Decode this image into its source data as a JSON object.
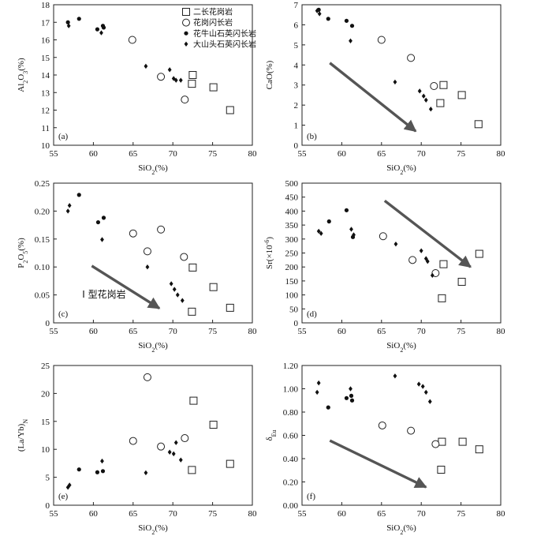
{
  "chart_data": [
    {
      "panel": "(a)",
      "type": "scatter",
      "xlabel": "SiO2(%)",
      "ylabel": "Al2O3(%)",
      "xlim": [
        55,
        80
      ],
      "ylim": [
        10,
        18
      ],
      "xticks": [
        "55",
        "60",
        "65",
        "70",
        "75",
        "80"
      ],
      "yticks": [
        "10",
        "11",
        "12",
        "13",
        "14",
        "15",
        "16",
        "17",
        "18"
      ],
      "legend": {
        "placement": "top-right"
      },
      "series": [
        {
          "name": "二长花岗岩",
          "marker": "open-square",
          "points": [
            [
              72.5,
              14.0
            ],
            [
              72.4,
              13.5
            ],
            [
              75.1,
              13.3
            ],
            [
              77.2,
              12.0
            ]
          ]
        },
        {
          "name": "花岗闪长岩",
          "marker": "open-circle",
          "points": [
            [
              64.9,
              16.0
            ],
            [
              68.5,
              13.9
            ],
            [
              71.5,
              12.6
            ]
          ]
        },
        {
          "name": "花牛山石英闪长岩",
          "marker": "filled-circle",
          "points": [
            [
              56.8,
              17.0
            ],
            [
              58.2,
              17.2
            ],
            [
              60.5,
              16.6
            ],
            [
              61.2,
              16.8
            ],
            [
              61.3,
              16.7
            ]
          ]
        },
        {
          "name": "大山头石英闪长岩",
          "marker": "filled-diamond",
          "points": [
            [
              56.9,
              16.8
            ],
            [
              61.0,
              16.4
            ],
            [
              66.6,
              14.5
            ],
            [
              69.6,
              14.3
            ],
            [
              70.1,
              13.8
            ],
            [
              70.4,
              13.7
            ],
            [
              71.0,
              13.7
            ]
          ]
        }
      ]
    },
    {
      "panel": "(b)",
      "type": "scatter",
      "xlabel": "SiO2(%)",
      "ylabel": "CaO(%)",
      "xlim": [
        55,
        80
      ],
      "ylim": [
        0,
        7
      ],
      "xticks": [
        "55",
        "60",
        "65",
        "70",
        "75",
        "80"
      ],
      "yticks": [
        "0",
        "1",
        "2",
        "3",
        "4",
        "5",
        "6",
        "7"
      ],
      "trend_arrow": {
        "from": [
          58.5,
          4.1
        ],
        "to": [
          69.3,
          0.7
        ]
      },
      "series": [
        {
          "name": "二长花岗岩",
          "marker": "open-square",
          "points": [
            [
              72.8,
              3.0
            ],
            [
              72.4,
              2.1
            ],
            [
              75.1,
              2.5
            ],
            [
              77.2,
              1.05
            ]
          ]
        },
        {
          "name": "花岗闪长岩",
          "marker": "open-circle",
          "points": [
            [
              65.0,
              5.25
            ],
            [
              68.7,
              4.35
            ],
            [
              71.6,
              2.95
            ]
          ]
        },
        {
          "name": "花牛山石英闪长岩",
          "marker": "filled-circle",
          "points": [
            [
              58.3,
              6.3
            ],
            [
              60.6,
              6.2
            ],
            [
              61.3,
              5.95
            ],
            [
              57.1,
              6.75
            ]
          ]
        },
        {
          "name": "大山头石英闪长岩",
          "marker": "filled-diamond",
          "points": [
            [
              56.9,
              6.7
            ],
            [
              57.2,
              6.55
            ],
            [
              61.1,
              5.2
            ],
            [
              66.7,
              3.15
            ],
            [
              69.8,
              2.7
            ],
            [
              70.3,
              2.45
            ],
            [
              70.6,
              2.25
            ],
            [
              71.2,
              1.8
            ]
          ]
        }
      ]
    },
    {
      "panel": "(c)",
      "type": "scatter",
      "xlabel": "SiO2(%)",
      "ylabel": "P2O5(%)",
      "xlim": [
        55,
        80
      ],
      "ylim": [
        0,
        0.25
      ],
      "xticks": [
        "55",
        "60",
        "65",
        "70",
        "75",
        "80"
      ],
      "yticks": [
        "0",
        "0.05",
        "0.10",
        "0.15",
        "0.20",
        "0.25"
      ],
      "annotation": "I 型花岗岩",
      "trend_arrow": {
        "from": [
          59.8,
          0.102
        ],
        "to": [
          68.3,
          0.026
        ]
      },
      "series": [
        {
          "name": "二长花岗岩",
          "marker": "open-square",
          "points": [
            [
              72.5,
              0.099
            ],
            [
              72.4,
              0.02
            ],
            [
              75.1,
              0.064
            ],
            [
              77.2,
              0.027
            ]
          ]
        },
        {
          "name": "花岗闪长岩",
          "marker": "open-circle",
          "points": [
            [
              65.0,
              0.16
            ],
            [
              68.5,
              0.167
            ],
            [
              66.8,
              0.128
            ],
            [
              71.4,
              0.118
            ]
          ]
        },
        {
          "name": "花牛山石英闪长岩",
          "marker": "filled-circle",
          "points": [
            [
              58.2,
              0.229
            ],
            [
              60.6,
              0.18
            ],
            [
              61.3,
              0.188
            ]
          ]
        },
        {
          "name": "大山头石英闪长岩",
          "marker": "filled-diamond",
          "points": [
            [
              56.8,
              0.2
            ],
            [
              57.0,
              0.21
            ],
            [
              61.1,
              0.149
            ],
            [
              66.8,
              0.1
            ],
            [
              69.8,
              0.07
            ],
            [
              70.2,
              0.06
            ],
            [
              70.6,
              0.05
            ],
            [
              71.2,
              0.04
            ]
          ]
        }
      ]
    },
    {
      "panel": "(d)",
      "type": "scatter",
      "xlabel": "SiO2(%)",
      "ylabel": "Sr(×10⁻⁶)",
      "xlim": [
        55,
        80
      ],
      "ylim": [
        0,
        500
      ],
      "xticks": [
        "55",
        "60",
        "65",
        "70",
        "75",
        "80"
      ],
      "yticks": [
        "0",
        "50",
        "100",
        "150",
        "200",
        "250",
        "300",
        "350",
        "400",
        "450",
        "500"
      ],
      "trend_arrow": {
        "from": [
          65.4,
          437
        ],
        "to": [
          76.2,
          200
        ]
      },
      "series": [
        {
          "name": "二长花岗岩",
          "marker": "open-square",
          "points": [
            [
              72.8,
              210
            ],
            [
              72.6,
              88
            ],
            [
              75.1,
              147
            ],
            [
              77.3,
              247
            ]
          ]
        },
        {
          "name": "花岗闪长岩",
          "marker": "open-circle",
          "points": [
            [
              65.2,
              310
            ],
            [
              68.9,
              225
            ],
            [
              71.8,
              178
            ]
          ]
        },
        {
          "name": "花牛山石英闪长岩",
          "marker": "filled-circle",
          "points": [
            [
              58.4,
              363
            ],
            [
              60.6,
              403
            ],
            [
              61.4,
              307
            ]
          ]
        },
        {
          "name": "大山头石英闪长岩",
          "marker": "filled-diamond",
          "points": [
            [
              57.1,
              328
            ],
            [
              57.4,
              320
            ],
            [
              61.2,
              335
            ],
            [
              61.5,
              315
            ],
            [
              66.8,
              282
            ],
            [
              70.0,
              258
            ],
            [
              70.6,
              230
            ],
            [
              70.8,
              220
            ],
            [
              71.4,
              170
            ]
          ]
        }
      ]
    },
    {
      "panel": "(e)",
      "type": "scatter",
      "xlabel": "SiO2(%)",
      "ylabel": "(La/Yb)N",
      "xlim": [
        55,
        80
      ],
      "ylim": [
        0,
        25
      ],
      "xticks": [
        "55",
        "60",
        "65",
        "70",
        "75",
        "80"
      ],
      "yticks": [
        "0",
        "5",
        "10",
        "15",
        "20",
        "25"
      ],
      "series": [
        {
          "name": "二长花岗岩",
          "marker": "open-square",
          "points": [
            [
              72.6,
              18.7
            ],
            [
              72.4,
              6.3
            ],
            [
              75.1,
              14.4
            ],
            [
              77.2,
              7.4
            ]
          ]
        },
        {
          "name": "花岗闪长岩",
          "marker": "open-circle",
          "points": [
            [
              66.8,
              22.9
            ],
            [
              65.0,
              11.5
            ],
            [
              68.5,
              10.5
            ],
            [
              71.5,
              12.0
            ]
          ]
        },
        {
          "name": "花牛山石英闪长岩",
          "marker": "filled-circle",
          "points": [
            [
              58.2,
              6.4
            ],
            [
              60.5,
              5.9
            ],
            [
              61.2,
              6.1
            ]
          ]
        },
        {
          "name": "大山头石英闪长岩",
          "marker": "filled-diamond",
          "points": [
            [
              56.8,
              3.2
            ],
            [
              57.0,
              3.6
            ],
            [
              61.1,
              7.9
            ],
            [
              66.6,
              5.8
            ],
            [
              69.6,
              9.5
            ],
            [
              70.1,
              9.2
            ],
            [
              70.4,
              11.2
            ],
            [
              71.0,
              8.1
            ]
          ]
        }
      ]
    },
    {
      "panel": "(f)",
      "type": "scatter",
      "xlabel": "SiO2(%)",
      "ylabel": "δEu",
      "xlim": [
        55,
        80
      ],
      "ylim": [
        0.0,
        1.2
      ],
      "xticks": [
        "55",
        "60",
        "65",
        "70",
        "75",
        "80"
      ],
      "yticks": [
        "0.00",
        "0.20",
        "0.40",
        "0.60",
        "0.80",
        "1.00",
        "1.20"
      ],
      "trend_arrow": {
        "from": [
          58.5,
          0.555
        ],
        "to": [
          70.6,
          0.155
        ]
      },
      "series": [
        {
          "name": "二长花岗岩",
          "marker": "open-square",
          "points": [
            [
              72.6,
              0.545
            ],
            [
              72.5,
              0.305
            ],
            [
              75.2,
              0.545
            ],
            [
              77.3,
              0.48
            ]
          ]
        },
        {
          "name": "花岗闪长岩",
          "marker": "open-circle",
          "points": [
            [
              65.1,
              0.685
            ],
            [
              68.7,
              0.64
            ],
            [
              71.8,
              0.525
            ]
          ]
        },
        {
          "name": "花牛山石英闪长岩",
          "marker": "filled-circle",
          "points": [
            [
              58.3,
              0.84
            ],
            [
              60.6,
              0.92
            ],
            [
              61.2,
              0.94
            ],
            [
              61.3,
              0.9
            ]
          ]
        },
        {
          "name": "大山头石英闪长岩",
          "marker": "filled-diamond",
          "points": [
            [
              56.9,
              0.97
            ],
            [
              57.1,
              1.05
            ],
            [
              61.1,
              1.0
            ],
            [
              66.7,
              1.11
            ],
            [
              69.7,
              1.04
            ],
            [
              70.2,
              1.02
            ],
            [
              70.6,
              0.97
            ],
            [
              71.1,
              0.89
            ]
          ]
        }
      ]
    }
  ]
}
